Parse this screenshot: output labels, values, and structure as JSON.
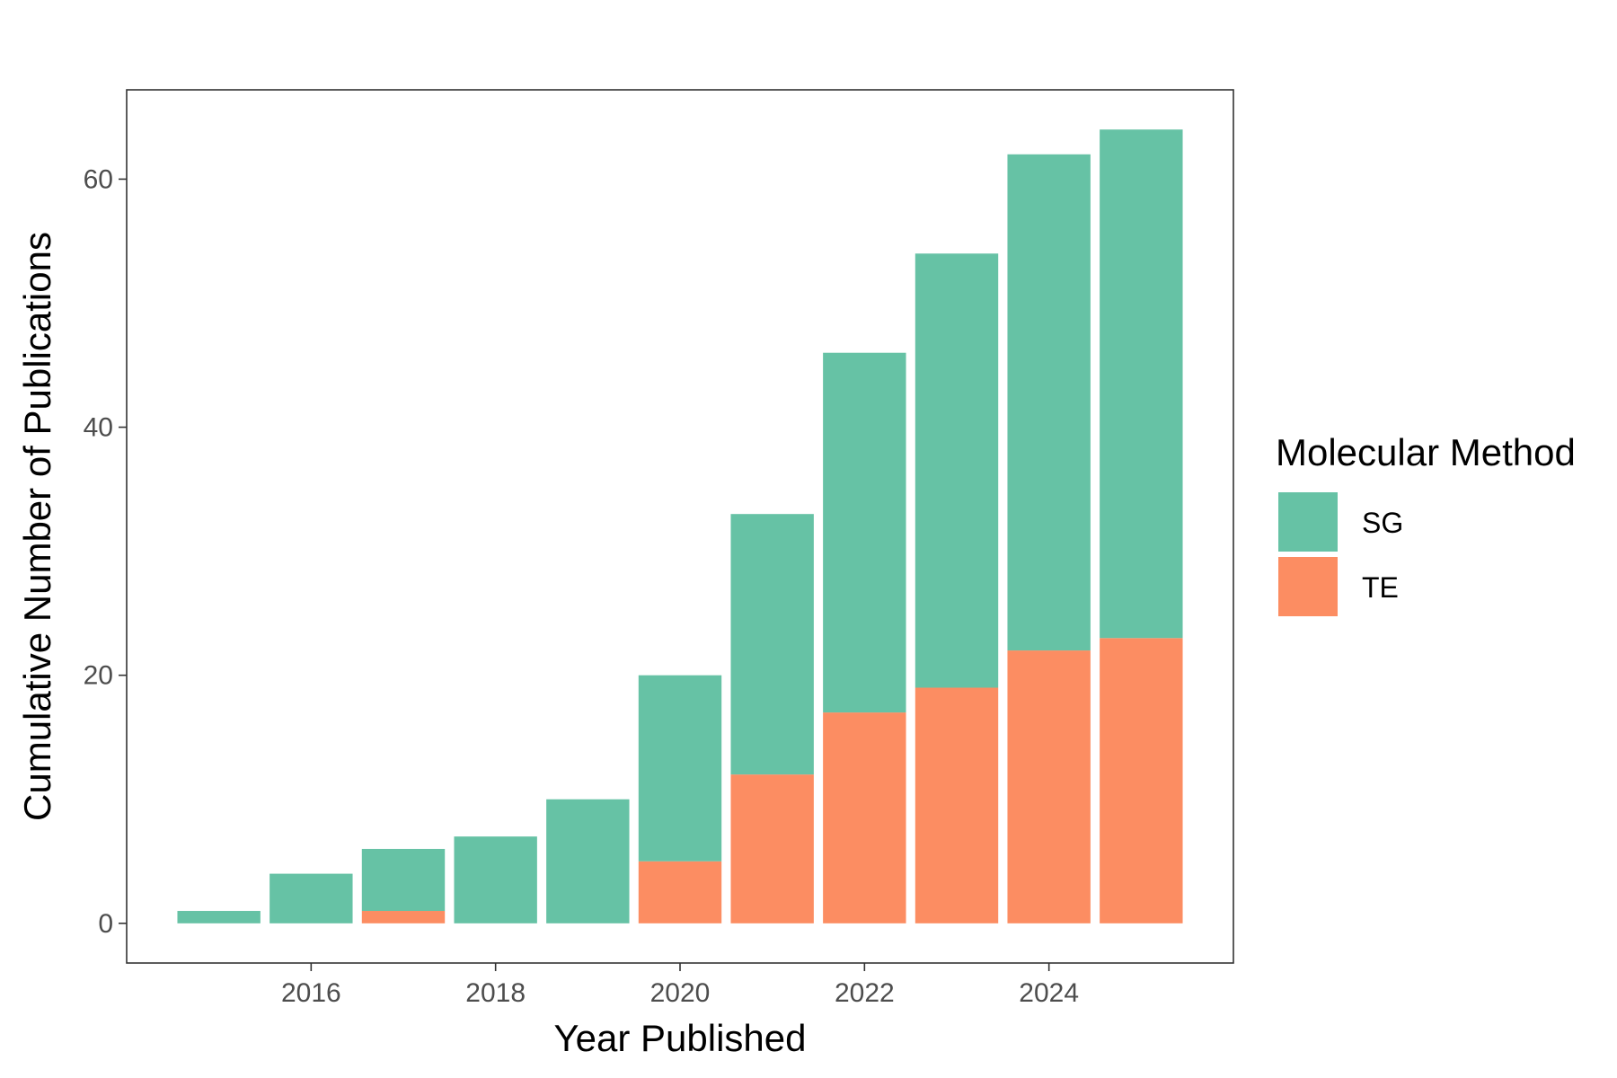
{
  "chart_data": {
    "type": "bar",
    "stacked": true,
    "xlabel": "Year Published",
    "ylabel": "Cumulative Number of Publications",
    "x": [
      2015,
      2016,
      2017,
      2018,
      2019,
      2020,
      2021,
      2022,
      2023,
      2024,
      2025
    ],
    "x_ticks": [
      "2016",
      "2018",
      "2020",
      "2022",
      "2024"
    ],
    "x_tick_values": [
      2016,
      2018,
      2020,
      2022,
      2024
    ],
    "y_ticks": [
      "0",
      "20",
      "40",
      "60"
    ],
    "y_tick_values": [
      0,
      20,
      40,
      60
    ],
    "xlim": [
      2014.0,
      2026.0
    ],
    "ylim": [
      -3.2,
      67.2
    ],
    "grid": false,
    "legend": {
      "title": "Molecular Method",
      "position": "right",
      "entries": [
        "SG",
        "TE"
      ]
    },
    "series": [
      {
        "name": "TE",
        "color": "#FC8D62",
        "values": [
          0,
          0,
          1,
          0,
          0,
          5,
          12,
          17,
          19,
          22,
          23
        ]
      },
      {
        "name": "SG",
        "color": "#66C2A5",
        "values": [
          1,
          4,
          5,
          7,
          10,
          15,
          21,
          29,
          35,
          40,
          41
        ]
      }
    ]
  }
}
